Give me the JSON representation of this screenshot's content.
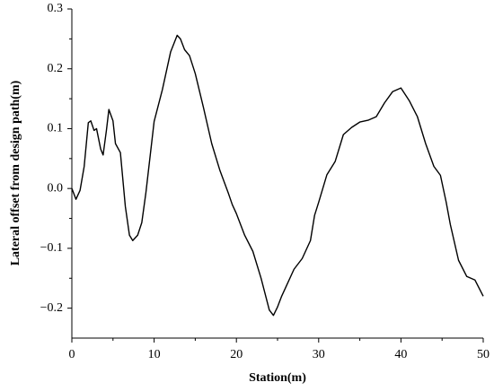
{
  "chart_data": {
    "type": "line",
    "x_label": "Station(m)",
    "y_label": "Lateral offset from design path(m)",
    "xlim": [
      0,
      50
    ],
    "ylim": [
      -0.25,
      0.3
    ],
    "xticks": [
      0,
      10,
      20,
      30,
      40,
      50
    ],
    "yticks": [
      {
        "value": -0.2,
        "label": "−0.2"
      },
      {
        "value": -0.1,
        "label": "−0.1"
      },
      {
        "value": 0,
        "label": "0.0"
      },
      0.1,
      0.2,
      0.3
    ],
    "series": [
      {
        "color": "#000000",
        "x": [
          0,
          0.5,
          1,
          1.5,
          2,
          2.3,
          2.7,
          3,
          3.5,
          3.8,
          4.2,
          4.5,
          5,
          5.3,
          5.9,
          6.5,
          7,
          7.4,
          8,
          8.5,
          9,
          10,
          11,
          12,
          12.8,
          13.2,
          13.7,
          14.3,
          15,
          16,
          17,
          18,
          19,
          19.5,
          20,
          21,
          22,
          23,
          24,
          24.5,
          25,
          25.5,
          26,
          27,
          28,
          29,
          29.5,
          30,
          31,
          32,
          33,
          34,
          35,
          36,
          37,
          38,
          39,
          40,
          41,
          42,
          43,
          44,
          44.8,
          45.5,
          46,
          47,
          48,
          49,
          50
        ],
        "values": [
          0,
          -0.018,
          -0.003,
          0.037,
          0.11,
          0.113,
          0.097,
          0.1,
          0.066,
          0.056,
          0.097,
          0.132,
          0.113,
          0.075,
          0.06,
          -0.03,
          -0.078,
          -0.087,
          -0.078,
          -0.057,
          -0.007,
          0.112,
          0.165,
          0.228,
          0.256,
          0.25,
          0.232,
          0.222,
          0.192,
          0.135,
          0.075,
          0.03,
          -0.007,
          -0.027,
          -0.042,
          -0.078,
          -0.105,
          -0.15,
          -0.203,
          -0.212,
          -0.198,
          -0.18,
          -0.165,
          -0.135,
          -0.117,
          -0.087,
          -0.045,
          -0.023,
          0.023,
          0.045,
          0.09,
          0.102,
          0.111,
          0.114,
          0.12,
          0.143,
          0.162,
          0.168,
          0.147,
          0.12,
          0.075,
          0.037,
          0.022,
          -0.023,
          -0.06,
          -0.12,
          -0.147,
          -0.153,
          -0.18
        ]
      }
    ]
  }
}
